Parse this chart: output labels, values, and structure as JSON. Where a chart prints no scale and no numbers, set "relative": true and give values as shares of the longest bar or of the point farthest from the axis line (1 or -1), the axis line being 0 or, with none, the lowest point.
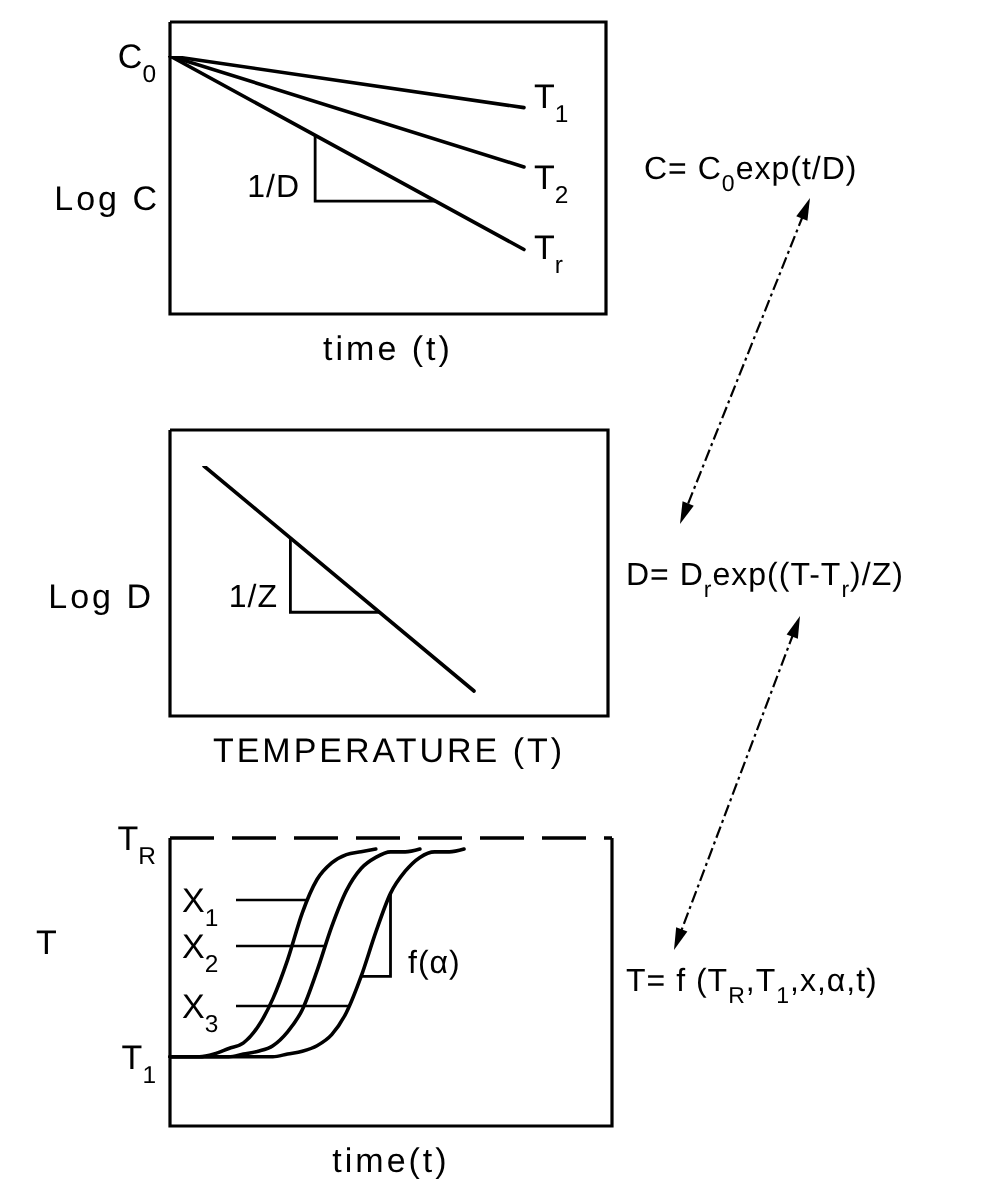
{
  "chart_data": [
    {
      "type": "line",
      "relative": true,
      "xlabel": "time (t)",
      "ylabel": "Log C",
      "categories": [
        null,
        null
      ],
      "marker": "none",
      "series": [
        {
          "name": "T$_{1}$",
          "color": "#000000",
          "values": [
            1,
            0.8
          ]
        },
        {
          "name": "T$_{2}$",
          "color": "#000000",
          "values": [
            1,
            0.57
          ]
        },
        {
          "name": "T$_{r}$",
          "color": "#000000",
          "values": [
            1,
            0.25
          ]
        }
      ],
      "annotations": [
        "C$_{0}$",
        "1/D",
        "C= C$_{0}$exp(t/D)"
      ]
    },
    {
      "type": "line",
      "relative": true,
      "xlabel": "TEMPERATURE (T)",
      "ylabel": "Log D",
      "categories": [
        null,
        null
      ],
      "marker": "none",
      "color": "#000000",
      "values": [
        1,
        0.1
      ],
      "annotations": [
        "1/Z",
        "D= D$_{r}$exp((T-T$_{r}$)/Z)"
      ]
    },
    {
      "type": "line",
      "relative": true,
      "xlabel": "time(t)",
      "ylabel": "T",
      "categories": [
        null,
        null,
        null,
        null,
        null,
        null,
        null,
        null,
        null,
        null,
        null,
        null,
        null,
        null,
        null,
        null,
        null,
        null,
        null,
        null,
        null
      ],
      "marker": "none",
      "legend": "left",
      "series": [
        {
          "name": "X$_{1}$",
          "color": "#000000",
          "values": [
            0.25,
            0.25,
            0.25,
            0.26,
            0.28,
            0.3,
            0.36,
            0.46,
            0.6,
            0.77,
            0.89,
            0.95,
            0.98,
            0.99,
            1,
            null,
            null,
            null,
            null,
            null,
            null
          ]
        },
        {
          "name": "X$_{2}$",
          "color": "#000000",
          "values": [
            0.25,
            0.25,
            0.25,
            0.25,
            0.25,
            0.26,
            0.27,
            0.29,
            0.34,
            0.42,
            0.56,
            0.72,
            0.85,
            0.93,
            0.97,
            0.99,
            0.99,
            1,
            null,
            null,
            null
          ]
        },
        {
          "name": "X$_{3}$",
          "color": "#000000",
          "values": [
            0.25,
            0.25,
            0.25,
            0.25,
            0.25,
            0.25,
            0.25,
            0.25,
            0.26,
            0.27,
            0.29,
            0.33,
            0.41,
            0.54,
            0.7,
            0.84,
            0.92,
            0.97,
            0.99,
            0.99,
            1
          ]
        }
      ],
      "ref_lines": [
        {
          "axis": "y",
          "value": 1.04,
          "label": "T$_{R}$",
          "line_style": "dashed"
        }
      ],
      "annotations": [
        "T$_{1}$",
        "f(α)",
        "T= f (T$_{R}$,T$_{1}$,x,α,t)"
      ]
    }
  ]
}
